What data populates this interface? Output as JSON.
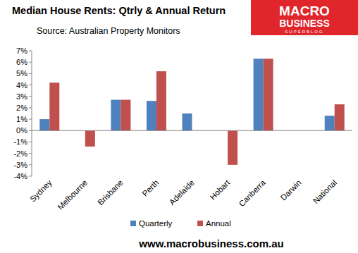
{
  "chart_data": {
    "type": "bar",
    "title": "Median House Rents: Qtrly & Annual Return",
    "subtitle": "Source: Australian Property Monitors",
    "annotations": [
      "MACRO",
      "BUSINESS",
      "SUPERBLOG",
      "www.macrobusiness.com.au"
    ],
    "categories": [
      "Sydney",
      "Melbourne",
      "Brisbane",
      "Perth",
      "Adelaide",
      "Hobart",
      "Canberra",
      "Darwin",
      "National"
    ],
    "series": [
      {
        "name": "Quarterly",
        "color": "#4f81bd",
        "values": [
          1.0,
          0,
          2.7,
          2.6,
          1.5,
          0,
          6.3,
          0,
          1.3
        ]
      },
      {
        "name": "Annual",
        "color": "#c0504d",
        "values": [
          4.2,
          -1.4,
          2.7,
          5.2,
          0,
          -3.0,
          6.3,
          0,
          2.3
        ]
      }
    ],
    "ylim": [
      -4,
      7
    ],
    "yticks": [
      {
        "value": -4,
        "label": "-4%"
      },
      {
        "value": -3,
        "label": "-3%"
      },
      {
        "value": -2,
        "label": "-2%"
      },
      {
        "value": -1,
        "label": "-1%"
      },
      {
        "value": 0,
        "label": "0%"
      },
      {
        "value": 1,
        "label": "1%"
      },
      {
        "value": 2,
        "label": "2%"
      },
      {
        "value": 3,
        "label": "3%"
      },
      {
        "value": 4,
        "label": "4%"
      },
      {
        "value": 5,
        "label": "5%"
      },
      {
        "value": 6,
        "label": "6%"
      },
      {
        "value": 7,
        "label": "7%"
      }
    ],
    "grid": false,
    "legend": "bottom"
  }
}
